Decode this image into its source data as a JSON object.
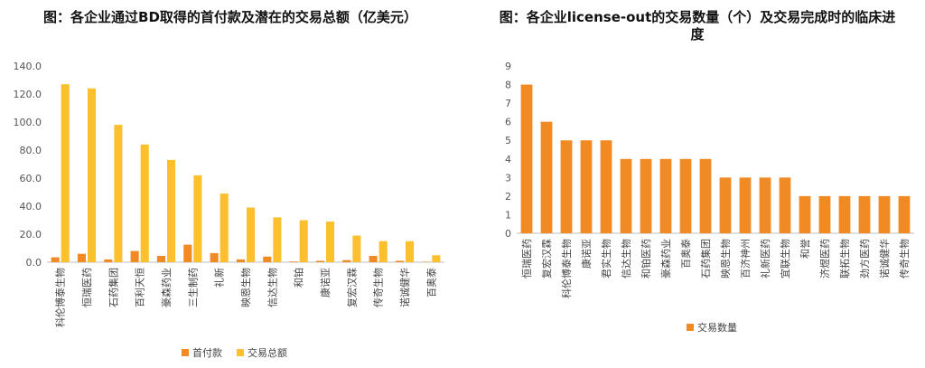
{
  "chart_data": [
    {
      "type": "bar",
      "title": "图：各企业通过BD取得的首付款及潜在的交易总额（亿美元）",
      "categories": [
        "科伦博泰生物",
        "恒瑞医药",
        "石药集团",
        "百利天恒",
        "豪森药业",
        "三生制药",
        "礼新",
        "映恩生物",
        "信达生物",
        "和铂",
        "康诺亚",
        "复宏汉霖",
        "传奇生物",
        "诺诚健华",
        "百奥泰"
      ],
      "series": [
        {
          "name": "首付款",
          "color": "#f08a24",
          "values": [
            3.5,
            6.0,
            2.0,
            8.0,
            4.5,
            12.5,
            6.5,
            2.0,
            4.0,
            0.5,
            1.0,
            1.5,
            4.5,
            1.0,
            0.3
          ]
        },
        {
          "name": "交易总额",
          "color": "#fcc02e",
          "values": [
            127.0,
            124.0,
            98.0,
            84.0,
            73.0,
            62.0,
            49.0,
            39.0,
            32.0,
            30.0,
            29.0,
            19.0,
            15.0,
            15.0,
            5.0
          ]
        }
      ],
      "ylim": [
        0,
        140
      ],
      "yticks": [
        "0.0",
        "20.0",
        "40.0",
        "60.0",
        "80.0",
        "100.0",
        "120.0",
        "140.0"
      ],
      "grid": false,
      "legend": "bottom"
    },
    {
      "type": "bar",
      "title": "图：各企业license-out的交易数量（个）及交易完成时的临床进度",
      "categories": [
        "恒瑞医药",
        "复宏汉霖",
        "科伦博泰生物",
        "康诺亚",
        "君实生物",
        "信达生物",
        "和铂医药",
        "豪森药业",
        "百奥泰",
        "石药集团",
        "映恩生物",
        "百济神州",
        "礼新医药",
        "宜联生物",
        "和誉",
        "济煜医药",
        "联拓生物",
        "劲方医药",
        "诺诚健华",
        "传奇生物"
      ],
      "series": [
        {
          "name": "交易数量",
          "color": "#f08a24",
          "values": [
            8,
            6,
            5,
            5,
            5,
            4,
            4,
            4,
            4,
            4,
            3,
            3,
            3,
            3,
            2,
            2,
            2,
            2,
            2,
            2
          ]
        }
      ],
      "ylim": [
        0,
        9
      ],
      "yticks": [
        "0",
        "1",
        "2",
        "3",
        "4",
        "5",
        "6",
        "7",
        "8",
        "9"
      ],
      "grid": false,
      "legend": "bottom"
    }
  ]
}
